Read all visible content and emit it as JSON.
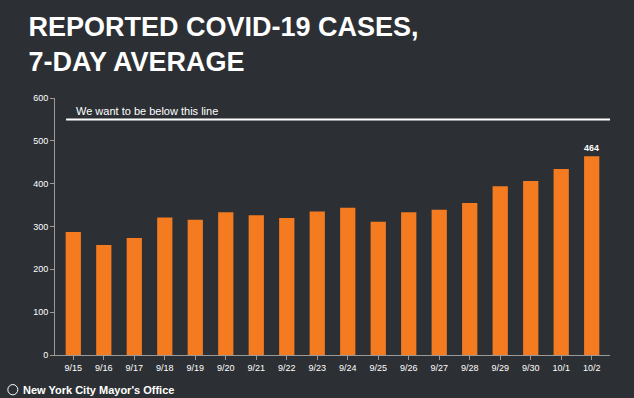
{
  "chart_data": {
    "type": "bar",
    "title": "REPORTED COVID-19 CASES,\n7-DAY AVERAGE",
    "categories": [
      "9/15",
      "9/16",
      "9/17",
      "9/18",
      "9/19",
      "9/20",
      "9/21",
      "9/22",
      "9/23",
      "9/24",
      "9/25",
      "9/26",
      "9/27",
      "9/28",
      "9/29",
      "9/30",
      "10/1",
      "10/2"
    ],
    "values": [
      287,
      257,
      273,
      321,
      316,
      333,
      326,
      320,
      335,
      344,
      311,
      333,
      339,
      355,
      394,
      406,
      434,
      464
    ],
    "data_labels": true,
    "value_labels": [
      null,
      null,
      null,
      null,
      null,
      null,
      null,
      null,
      null,
      null,
      null,
      null,
      null,
      null,
      null,
      null,
      null,
      "464"
    ],
    "color": "#f47b20",
    "ylim": [
      0,
      600
    ],
    "yticks": [
      0,
      100,
      200,
      300,
      400,
      500,
      600
    ],
    "grid": false,
    "reference_line": {
      "value": 550,
      "label": "We want to be below this line"
    },
    "source": "New York City Mayor's Office"
  }
}
